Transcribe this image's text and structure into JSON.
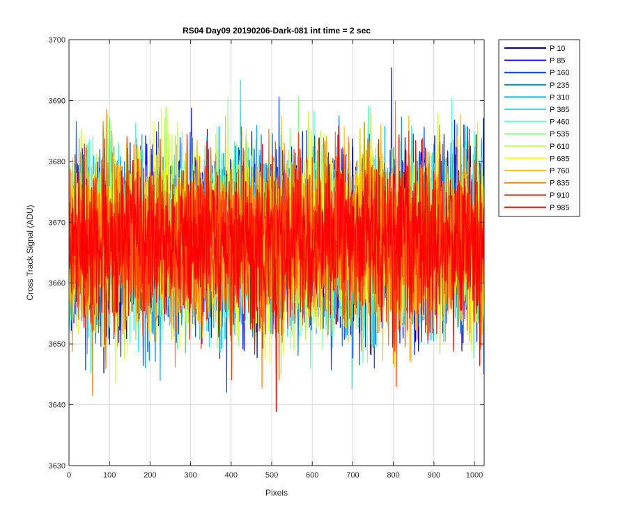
{
  "chart_data": {
    "type": "line",
    "title": "RS04 Day09 20190206-Dark-081 int time = 2 sec",
    "xlabel": "Pixels",
    "ylabel": "Cross Track Signal (ADU)",
    "xlim": [
      0,
      1024
    ],
    "ylim": [
      3630,
      3700
    ],
    "xticks": [
      0,
      100,
      200,
      300,
      400,
      500,
      600,
      700,
      800,
      900,
      1000
    ],
    "yticks": [
      3630,
      3640,
      3650,
      3660,
      3670,
      3680,
      3690,
      3700
    ],
    "grid": true,
    "legend_position": "outside-top-right",
    "noise_model": {
      "mean": 3667,
      "std": 7,
      "min": 3638,
      "max": 3699,
      "points_per_series": 1024
    },
    "series": [
      {
        "name": "P 10",
        "color": "#00008f"
      },
      {
        "name": "P 85",
        "color": "#0010ff"
      },
      {
        "name": "P 160",
        "color": "#0040ff"
      },
      {
        "name": "P 235",
        "color": "#0080ff"
      },
      {
        "name": "P 310",
        "color": "#00b0ff"
      },
      {
        "name": "P 385",
        "color": "#10f0ff"
      },
      {
        "name": "P 460",
        "color": "#50ffd0"
      },
      {
        "name": "P 535",
        "color": "#90ff90"
      },
      {
        "name": "P 610",
        "color": "#c0ff40"
      },
      {
        "name": "P 685",
        "color": "#ffff00"
      },
      {
        "name": "P 760",
        "color": "#ffc000"
      },
      {
        "name": "P 835",
        "color": "#ff8000"
      },
      {
        "name": "P 910",
        "color": "#ff4000"
      },
      {
        "name": "P 985",
        "color": "#ff0000"
      }
    ]
  }
}
